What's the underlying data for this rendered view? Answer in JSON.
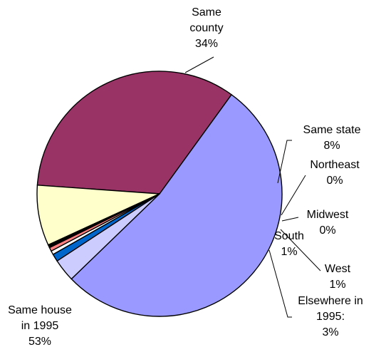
{
  "chart_data": {
    "type": "pie",
    "slices": [
      {
        "label": "Same house in 1995",
        "display": [
          "Same house",
          "in 1995",
          "53%"
        ],
        "value": 53,
        "color": "#9999ff"
      },
      {
        "label": "Same county",
        "display": [
          "Same",
          "county",
          "34%"
        ],
        "value": 34,
        "color": "#993366"
      },
      {
        "label": "Same state",
        "display": [
          "Same state",
          "8%"
        ],
        "value": 8,
        "color": "#ffffcc"
      },
      {
        "label": "Northeast",
        "display": [
          "Northeast",
          "0%"
        ],
        "value": 0.4,
        "color": "#000000"
      },
      {
        "label": "Midwest",
        "display": [
          "Midwest",
          "0%"
        ],
        "value": 0.5,
        "color": "#ff8080"
      },
      {
        "label": "South",
        "display": [
          "South",
          "1%"
        ],
        "value": 0.5,
        "color": "#ffffff"
      },
      {
        "label": "West",
        "display": [
          "West",
          "1%"
        ],
        "value": 1,
        "color": "#0066cc"
      },
      {
        "label": "Elsewhere in 1995:",
        "display": [
          "Elsewhere in",
          "1995:",
          "3%"
        ],
        "value": 3,
        "color": "#ccccff"
      }
    ]
  }
}
